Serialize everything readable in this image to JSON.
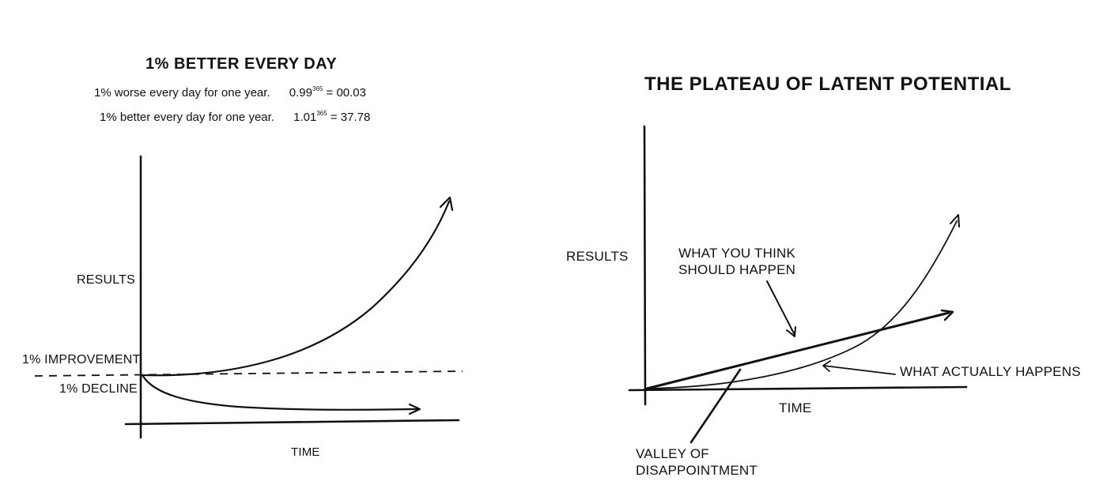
{
  "left": {
    "title": "1% BETTER EVERY DAY",
    "worse_row": {
      "text": "1% worse every day for one year.",
      "base": "0.99",
      "exponent": "365",
      "result": "= 00.03"
    },
    "better_row": {
      "text": "1% better every day for one year.",
      "base": "1.01",
      "exponent": "365",
      "result": "= 37.78"
    },
    "y_label": "RESULTS",
    "x_label": "TIME",
    "improvement_label": "1% IMPROVEMENT",
    "decline_label": "1% DECLINE"
  },
  "right": {
    "title": "THE PLATEAU OF LATENT POTENTIAL",
    "y_label": "RESULTS",
    "x_label": "TIME",
    "think_label_1": "WHAT YOU THINK",
    "think_label_2": "SHOULD HAPPEN",
    "actual_label": "WHAT ACTUALLY HAPPENS",
    "valley_label_1": "VALLEY OF",
    "valley_label_2": "DISAPPOINTMENT"
  },
  "colors": {
    "ink": "#111111",
    "background": "#ffffff"
  }
}
